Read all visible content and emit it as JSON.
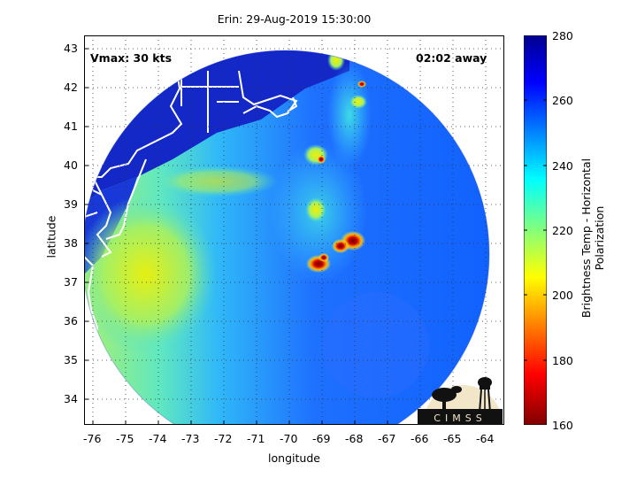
{
  "title": "Erin: 29-Aug-2019 15:30:00",
  "xlabel": "longitude",
  "ylabel": "latitude",
  "vmax_text": "Vmax: 30 kts",
  "away_text": "02:02 away",
  "colorbar": {
    "label": "Brightness Temp - Horizontal Polarization",
    "min": 160,
    "max": 280,
    "ticks": [
      "280",
      "260",
      "240",
      "220",
      "200",
      "180",
      "160"
    ]
  },
  "x_ticks": [
    "-76",
    "-75",
    "-74",
    "-73",
    "-72",
    "-71",
    "-70",
    "-69",
    "-68",
    "-67",
    "-66",
    "-65",
    "-64"
  ],
  "y_ticks": [
    "43",
    "42",
    "41",
    "40",
    "39",
    "38",
    "37",
    "36",
    "35",
    "34"
  ],
  "logo_text": "CIMSS",
  "map_extent": {
    "lon_min": -76.3,
    "lon_max": -63.5,
    "lat_min": 33.35,
    "lat_max": 43.3
  },
  "colors": {
    "cold_core": "#7a0000",
    "warm_ocean": "#1a3cff",
    "coast": "#ffffff"
  }
}
